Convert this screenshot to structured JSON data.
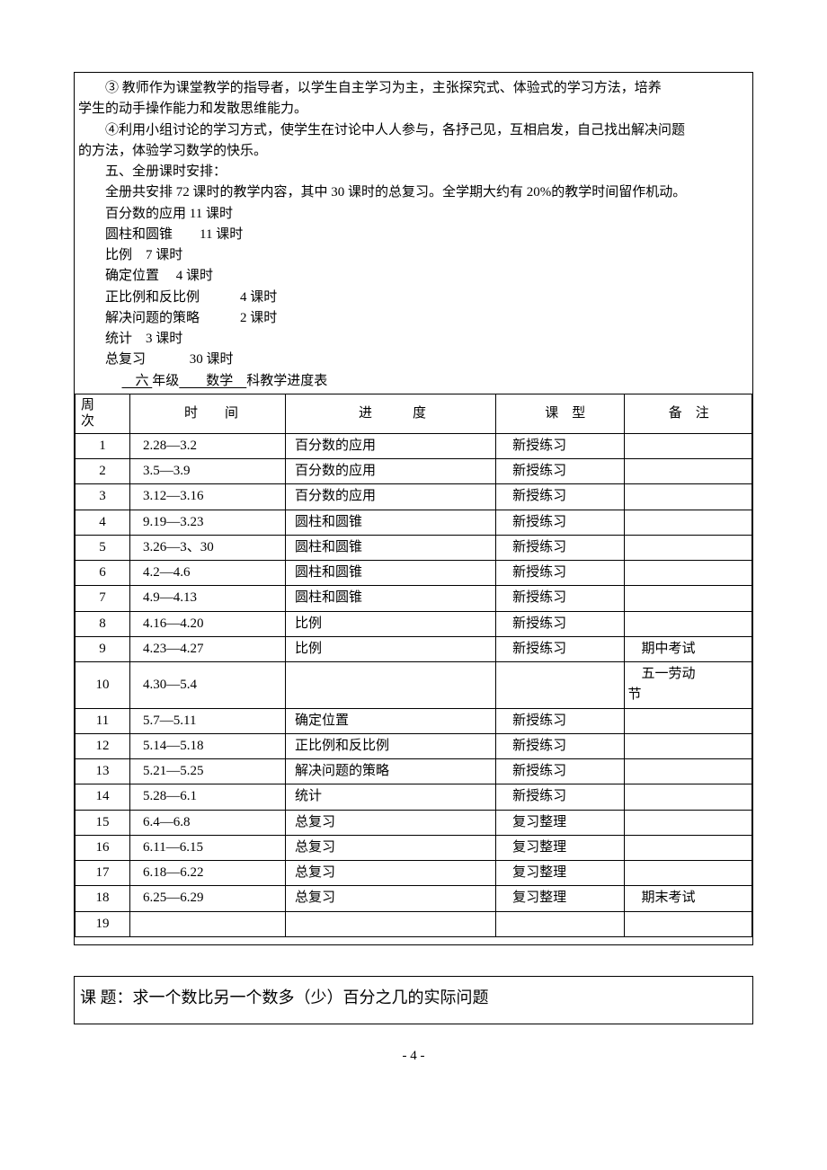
{
  "paragraphs": {
    "p1a": "③ 教师作为课堂教学的指导者，以学生自主学习为主，主张探究式、体验式的学习方法，培养",
    "p1b": "学生的动手操作能力和发散思维能力。",
    "p2a": "④利用小组讨论的学习方式，使学生在讨论中人人参与，各抒己见，互相启发，自己找出解决问题",
    "p2b": "的方法，体验学习数学的快乐。",
    "h5": "五、全册课时安排：",
    "s1": "全册共安排 72 课时的教学内容，其中 30 课时的总复习。全学期大约有 20%的教学时间留作机动。",
    "s2": "百分数的应用 11 课时",
    "s3": "圆柱和圆锥　　11 课时",
    "s4": "比例　7 课时",
    "s5": "确定位置　 4 课时",
    "s6": "正比例和反比例　　　4 课时",
    "s7": "解决问题的策略　　　2 课时",
    "s8": "统计　3 课时",
    "s9": "总复习　　　 30 课时"
  },
  "schedule_title": {
    "pre": "",
    "grade": "　六 ",
    "grade_suffix": "年级",
    "subject": "　　数学　",
    "tail": "科教学进度表"
  },
  "schedule": {
    "headers": {
      "week": "周次",
      "time": "时　　间",
      "progress": "进　　　度",
      "type": "课　型",
      "note": "备　注"
    },
    "rows": [
      {
        "week": "1",
        "time": "2.28—3.2",
        "progress": "百分数的应用",
        "type": "新授练习",
        "note": ""
      },
      {
        "week": "2",
        "time": "3.5—3.9",
        "progress": "百分数的应用",
        "type": "新授练习",
        "note": ""
      },
      {
        "week": "3",
        "time": "3.12—3.16",
        "progress": "百分数的应用",
        "type": "新授练习",
        "note": ""
      },
      {
        "week": "4",
        "time": "9.19—3.23",
        "progress": "圆柱和圆锥",
        "type": "新授练习",
        "note": ""
      },
      {
        "week": "5",
        "time": "3.26—3、30",
        "progress": "圆柱和圆锥",
        "type": "新授练习",
        "note": ""
      },
      {
        "week": "6",
        "time": "4.2—4.6",
        "progress": "圆柱和圆锥",
        "type": "新授练习",
        "note": ""
      },
      {
        "week": "7",
        "time": "4.9—4.13",
        "progress": "圆柱和圆锥",
        "type": "新授练习",
        "note": ""
      },
      {
        "week": "8",
        "time": "4.16—4.20",
        "progress": "比例",
        "type": "新授练习",
        "note": ""
      },
      {
        "week": "9",
        "time": "4.23—4.27",
        "progress": "比例",
        "type": "新授练习",
        "note": "期中考试"
      },
      {
        "week": "10",
        "time": "4.30—5.4",
        "progress": "",
        "type": "",
        "note": "五一劳动节"
      },
      {
        "week": "11",
        "time": "5.7—5.11",
        "progress": "确定位置",
        "type": "新授练习",
        "note": ""
      },
      {
        "week": "12",
        "time": "5.14—5.18",
        "progress": "正比例和反比例",
        "type": "新授练习",
        "note": ""
      },
      {
        "week": "13",
        "time": "5.21—5.25",
        "progress": "解决问题的策略",
        "type": "新授练习",
        "note": ""
      },
      {
        "week": "14",
        "time": "5.28—6.1",
        "progress": "统计",
        "type": "新授练习",
        "note": ""
      },
      {
        "week": "15",
        "time": "6.4—6.8",
        "progress": "总复习",
        "type": "复习整理",
        "note": ""
      },
      {
        "week": "16",
        "time": "6.11—6.15",
        "progress": "总复习",
        "type": "复习整理",
        "note": ""
      },
      {
        "week": "17",
        "time": "6.18—6.22",
        "progress": "总复习",
        "type": "复习整理",
        "note": ""
      },
      {
        "week": "18",
        "time": "6.25—6.29",
        "progress": "总复习",
        "type": "复习整理",
        "note": "期末考试"
      },
      {
        "week": "19",
        "time": "",
        "progress": "",
        "type": "",
        "note": ""
      }
    ]
  },
  "topic": {
    "label": "课 题：",
    "title": "求一个数比另一个数多（少）百分之几的实际问题"
  },
  "page_number": "- 4 -"
}
